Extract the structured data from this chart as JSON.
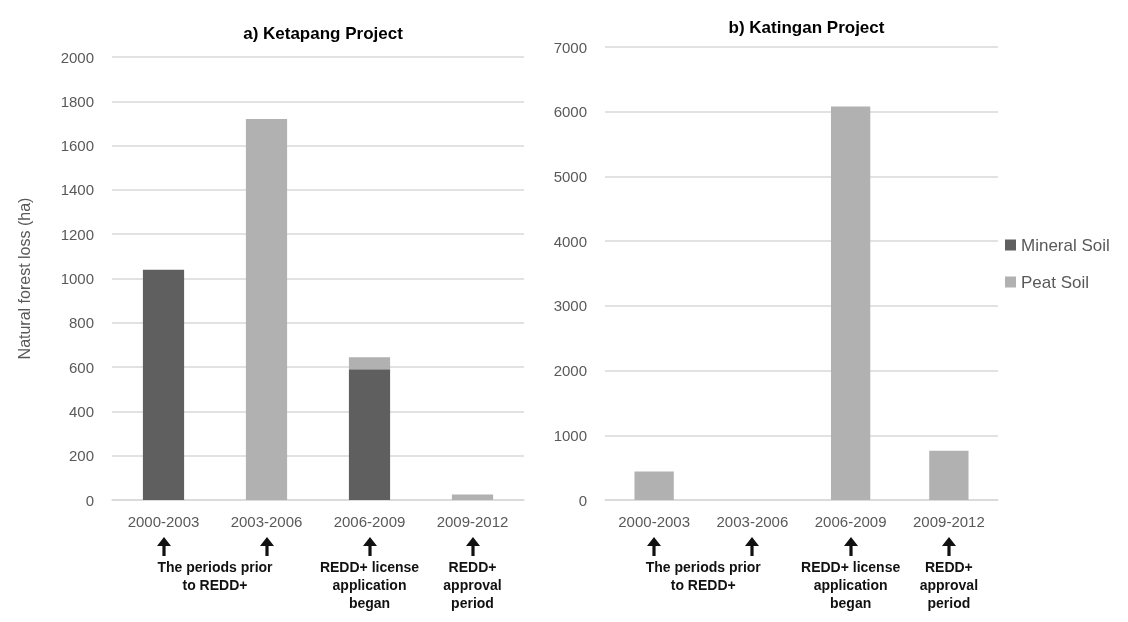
{
  "chart_data": [
    {
      "type": "bar",
      "title": "a) Ketapang Project",
      "ylabel": "Natural forest loss (ha)",
      "categories": [
        "2000-2003",
        "2003-2006",
        "2006-2009",
        "2009-2012"
      ],
      "series": [
        {
          "color": "#5f5f5f",
          "values": [
            1040,
            0,
            590,
            0
          ]
        },
        {
          "color": "#b1b1b1",
          "values": [
            0,
            1720,
            55,
            25
          ]
        }
      ],
      "stacked": true,
      "ylim": [
        0,
        2000
      ],
      "yticks": [
        0,
        200,
        400,
        600,
        800,
        1000,
        1200,
        1400,
        1600,
        1800,
        2000
      ],
      "grid": "y",
      "annotations": [
        "The periods prior\nto REDD+",
        "REDD+ license\napplication\nbegan",
        "REDD+\napproval\nperiod"
      ]
    },
    {
      "type": "bar",
      "title": "b) Katingan Project",
      "categories": [
        "2000-2003",
        "2003-2006",
        "2006-2009",
        "2009-2012"
      ],
      "series": [
        {
          "name": "Mineral Soil",
          "color": "#5f5f5f",
          "values": [
            0,
            0,
            0,
            0
          ]
        },
        {
          "name": "Peat Soil",
          "color": "#b1b1b1",
          "values": [
            440,
            0,
            6080,
            760
          ]
        }
      ],
      "stacked": true,
      "ylim": [
        0,
        7000
      ],
      "yticks": [
        0,
        1000,
        2000,
        3000,
        4000,
        5000,
        6000,
        7000
      ],
      "grid": "y",
      "legend": "right",
      "annotations": [
        "The periods prior\nto REDD+",
        "REDD+ license\napplication\nbegan",
        "REDD+\napproval\nperiod"
      ]
    }
  ]
}
